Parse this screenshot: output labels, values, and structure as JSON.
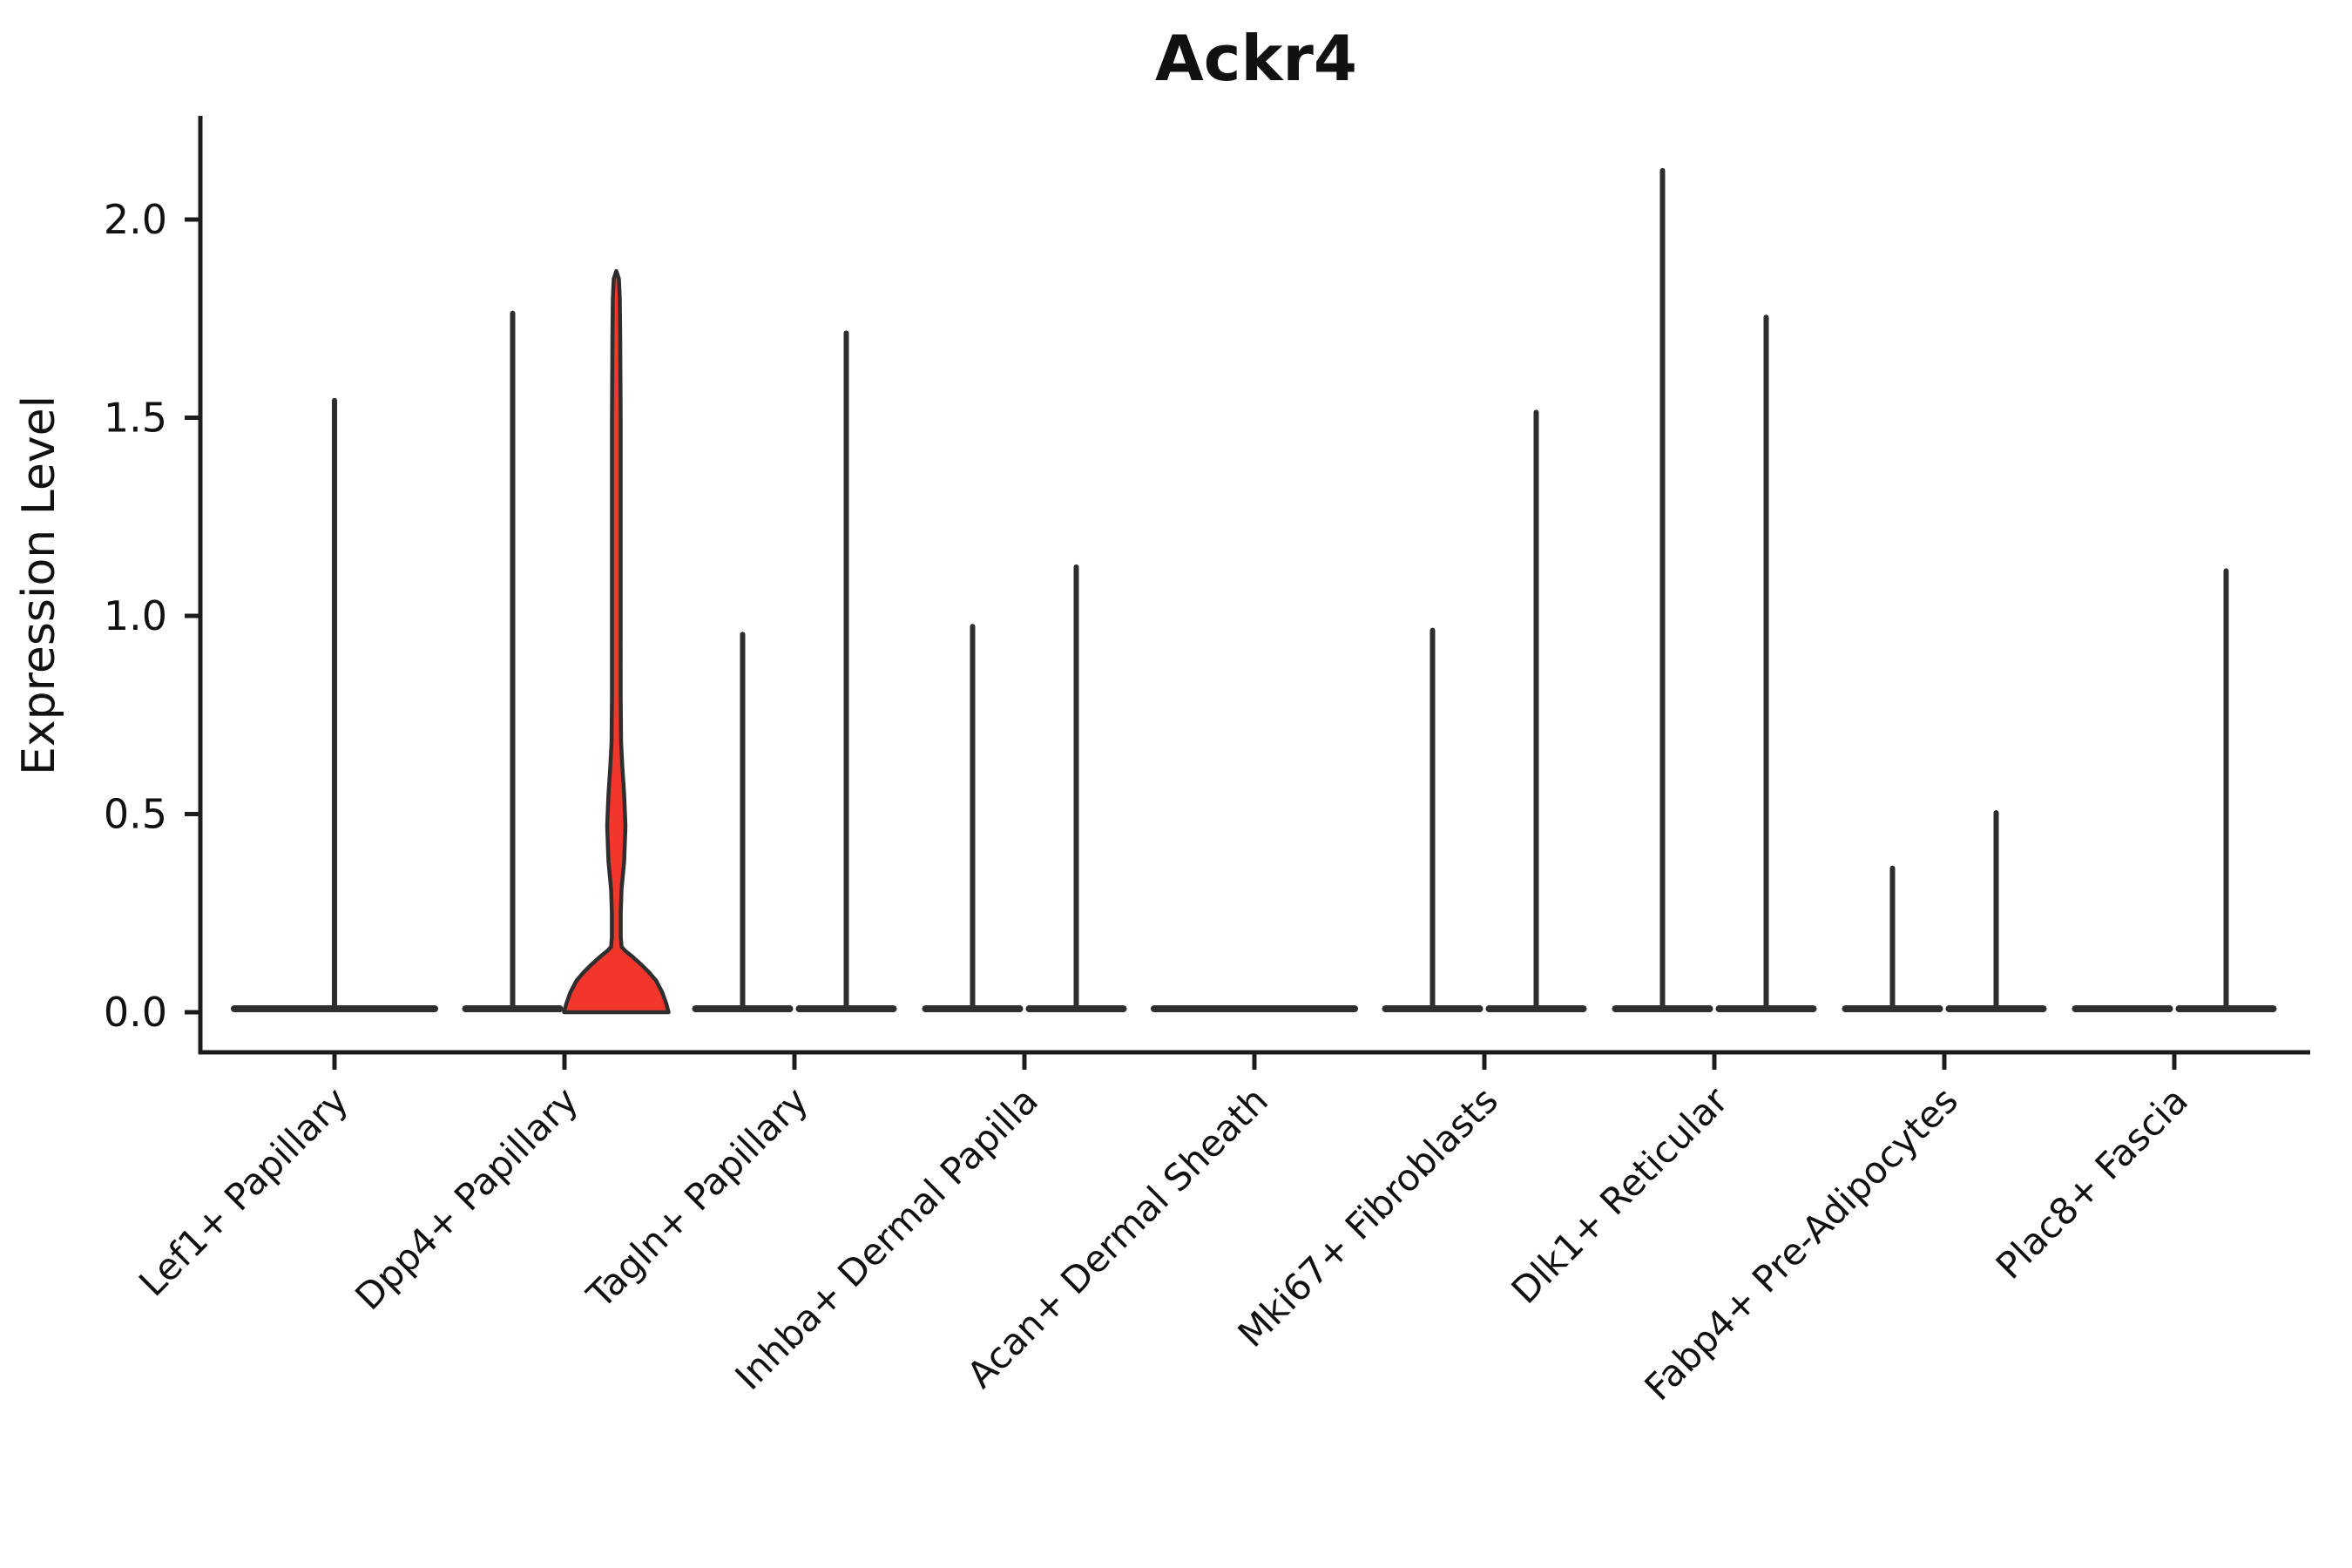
{
  "chart_data": {
    "type": "violin",
    "title": "Ackr4",
    "ylabel": "Expression Level",
    "xlabel": "",
    "yticks": [
      "0.0",
      "0.5",
      "1.0",
      "1.5",
      "2.0"
    ],
    "ytick_values": [
      0.0,
      0.5,
      1.0,
      1.5,
      2.0
    ],
    "ylim": [
      -0.1,
      2.26
    ],
    "grid": false,
    "legend": null,
    "colors": {
      "violin_line": "#2e2e2e",
      "highlight_fill": "#f1362b",
      "axis": "#1c1c1c",
      "text": "#111111",
      "background": "#ffffff"
    },
    "categories": [
      {
        "label": "Lef1+ Papillary",
        "violins": [
          {
            "side": "center",
            "max_expression": 1.55,
            "filled": false
          }
        ]
      },
      {
        "label": "Dpp4+ Papillary",
        "violins": [
          {
            "side": "left",
            "max_expression": 1.77,
            "filled": false
          },
          {
            "side": "right",
            "max_expression": 1.87,
            "filled": true,
            "profile": [
              [
                0.0,
                1.0
              ],
              [
                0.02,
                0.96
              ],
              [
                0.05,
                0.88
              ],
              [
                0.08,
                0.76
              ],
              [
                0.1,
                0.63
              ],
              [
                0.12,
                0.48
              ],
              [
                0.14,
                0.31
              ],
              [
                0.155,
                0.17
              ],
              [
                0.165,
                0.1
              ],
              [
                0.19,
                0.085
              ],
              [
                0.25,
                0.085
              ],
              [
                0.31,
                0.1
              ],
              [
                0.38,
                0.15
              ],
              [
                0.47,
                0.175
              ],
              [
                0.55,
                0.15
              ],
              [
                0.62,
                0.115
              ],
              [
                0.68,
                0.092
              ],
              [
                0.8,
                0.083
              ],
              [
                1.0,
                0.083
              ],
              [
                1.25,
                0.083
              ],
              [
                1.5,
                0.083
              ],
              [
                1.7,
                0.075
              ],
              [
                1.8,
                0.066
              ],
              [
                1.85,
                0.05
              ],
              [
                1.87,
                0.0
              ]
            ]
          }
        ]
      },
      {
        "label": "Tagln+ Papillary",
        "violins": [
          {
            "side": "left",
            "max_expression": 0.96,
            "filled": false
          },
          {
            "side": "right",
            "max_expression": 1.72,
            "filled": false
          }
        ]
      },
      {
        "label": "Inhba+ Dermal Papilla",
        "violins": [
          {
            "side": "left",
            "max_expression": 0.98,
            "filled": false
          },
          {
            "side": "right",
            "max_expression": 1.13,
            "filled": false
          }
        ]
      },
      {
        "label": "Acan+ Dermal Sheath",
        "violins": [
          {
            "side": "center",
            "max_expression": 0,
            "filled": false
          }
        ]
      },
      {
        "label": "Mki67+ Fibroblasts",
        "violins": [
          {
            "side": "left",
            "max_expression": 0.97,
            "filled": false
          },
          {
            "side": "right",
            "max_expression": 1.52,
            "filled": false
          }
        ]
      },
      {
        "label": "Dlk1+ Reticular",
        "violins": [
          {
            "side": "left",
            "max_expression": 2.13,
            "filled": false
          },
          {
            "side": "right",
            "max_expression": 1.76,
            "filled": false
          }
        ]
      },
      {
        "label": "Fabp4+ Pre-Adipocytes",
        "violins": [
          {
            "side": "left",
            "max_expression": 0.37,
            "filled": false
          },
          {
            "side": "right",
            "max_expression": 0.51,
            "filled": false
          }
        ]
      },
      {
        "label": "Plac8+ Fascia",
        "violins": [
          {
            "side": "left",
            "max_expression": 0,
            "filled": false
          },
          {
            "side": "right",
            "max_expression": 1.12,
            "filled": false
          }
        ]
      }
    ]
  }
}
